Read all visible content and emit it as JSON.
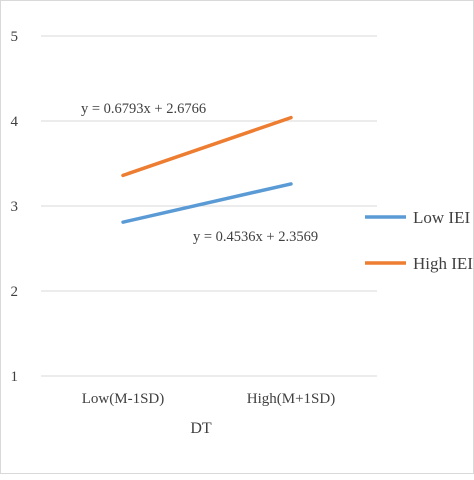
{
  "chart_data": {
    "type": "line",
    "title": "",
    "xlabel": "DT",
    "ylabel": "",
    "categories": [
      "Low(M-1SD)",
      "High(M+1SD)"
    ],
    "yticks": [
      "1",
      "2",
      "3",
      "4",
      "5"
    ],
    "ylim": [
      1,
      5
    ],
    "grid": true,
    "legend_position": "right",
    "series": [
      {
        "name": "Low IEI",
        "legend_label": "Low IEI",
        "values": [
          2.81,
          3.26
        ],
        "color": "#5b9bd5",
        "equation": "y = 0.4536x + 2.3569"
      },
      {
        "name": "High IEI",
        "legend_label": "High IEI",
        "values": [
          3.36,
          4.04
        ],
        "color": "#ed7d31",
        "equation": "y = 0.6793x + 2.6766"
      }
    ]
  }
}
